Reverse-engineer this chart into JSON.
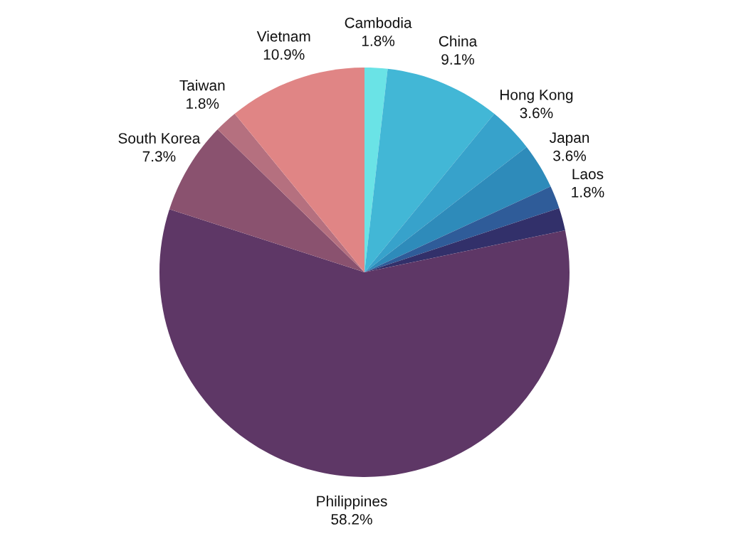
{
  "chart_data": {
    "type": "pie",
    "categories": [
      "Cambodia",
      "China",
      "Hong Kong",
      "Japan",
      "Laos",
      null,
      "Philippines",
      "South Korea",
      "Taiwan",
      "Vietnam"
    ],
    "values": [
      1.8,
      9.1,
      3.6,
      3.6,
      1.8,
      1.8,
      58.2,
      7.3,
      1.8,
      10.9
    ],
    "value_labels": [
      "1.8%",
      "9.1%",
      "3.6%",
      "3.6%",
      "1.8%",
      null,
      "58.2%",
      "7.3%",
      "1.8%",
      "10.9%"
    ],
    "colors": [
      "#6ae3e6",
      "#42b7d6",
      "#37a2cb",
      "#2e8bba",
      "#2f5c99",
      "#32306a",
      "#5e3766",
      "#8a526f",
      "#b5707f",
      "#e08585"
    ],
    "legend": false
  }
}
